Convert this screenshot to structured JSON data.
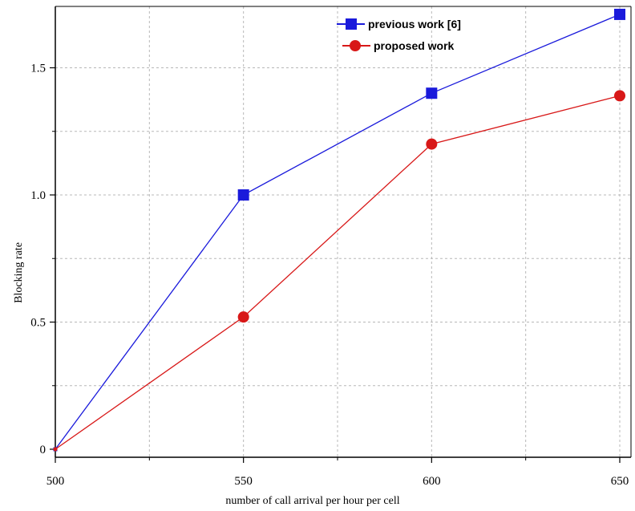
{
  "chart_data": {
    "type": "line",
    "title": "",
    "xlabel": "number of call arrival per hour per cell",
    "ylabel": "Blocking rate",
    "x": [
      500,
      550,
      600,
      650
    ],
    "x_ticks": [
      "500",
      "550",
      "600",
      "650"
    ],
    "y_ticks": [
      "0",
      "0.5",
      "1.0",
      "1.5"
    ],
    "xlim": [
      500,
      650
    ],
    "ylim": [
      0,
      1.7
    ],
    "grid": true,
    "legend_position": "top-right",
    "series": [
      {
        "name": "previous work [6]",
        "values": [
          0,
          1.0,
          1.4,
          1.71
        ],
        "color": "#1a1adb",
        "marker": "square"
      },
      {
        "name": "proposed work",
        "values": [
          0,
          0.52,
          1.2,
          1.39
        ],
        "color": "#d81818",
        "marker": "circle"
      }
    ]
  }
}
